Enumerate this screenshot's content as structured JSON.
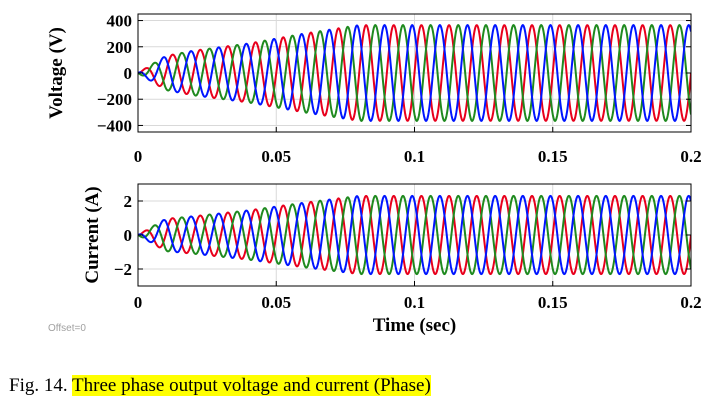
{
  "figure": {
    "caption_prefix": "Fig. 14.",
    "caption_text": "Three phase output voltage and current (Phase)",
    "offset_text": "Offset=0",
    "highlight_color": "#ffff00"
  },
  "chart_data": [
    {
      "type": "line",
      "ylabel": "Voltage (V)",
      "xlabel": "",
      "xlim": [
        0,
        0.2
      ],
      "ylim": [
        -450,
        450
      ],
      "xticks": [
        0,
        0.05,
        0.1,
        0.15,
        0.2
      ],
      "xtick_labels": [
        "0",
        "0.05",
        "0.1",
        "0.15",
        "0.2"
      ],
      "yticks": [
        400,
        200,
        0,
        -200,
        -400
      ],
      "ytick_labels": [
        "400",
        "200",
        "0",
        "−200",
        "−400"
      ],
      "grid": true,
      "frequency_hz": 100,
      "envelope": {
        "t": [
          0,
          0.01,
          0.02,
          0.04,
          0.06,
          0.08,
          0.2
        ],
        "amplitude": [
          0,
          130,
          170,
          225,
          300,
          365,
          365
        ]
      },
      "series": [
        {
          "color": "#e8001c",
          "phase_deg": 0
        },
        {
          "color": "#1f8a1f",
          "phase_deg": -120
        },
        {
          "color": "#0015ff",
          "phase_deg": 120
        }
      ]
    },
    {
      "type": "line",
      "ylabel": "Current (A)",
      "xlabel": "Time (sec)",
      "xlim": [
        0,
        0.2
      ],
      "ylim": [
        -3,
        3
      ],
      "xticks": [
        0,
        0.05,
        0.1,
        0.15,
        0.2
      ],
      "xtick_labels": [
        "0",
        "0.05",
        "0.1",
        "0.15",
        "0.2"
      ],
      "yticks": [
        2,
        0,
        -2
      ],
      "ytick_labels": [
        "2",
        "0",
        "−2"
      ],
      "grid": true,
      "frequency_hz": 100,
      "envelope": {
        "t": [
          0,
          0.01,
          0.02,
          0.04,
          0.06,
          0.08,
          0.2
        ],
        "amplitude": [
          0,
          0.95,
          1.1,
          1.45,
          1.9,
          2.3,
          2.3
        ]
      },
      "series": [
        {
          "color": "#e8001c",
          "phase_deg": 0
        },
        {
          "color": "#1f8a1f",
          "phase_deg": -120
        },
        {
          "color": "#0015ff",
          "phase_deg": 120
        }
      ]
    }
  ]
}
